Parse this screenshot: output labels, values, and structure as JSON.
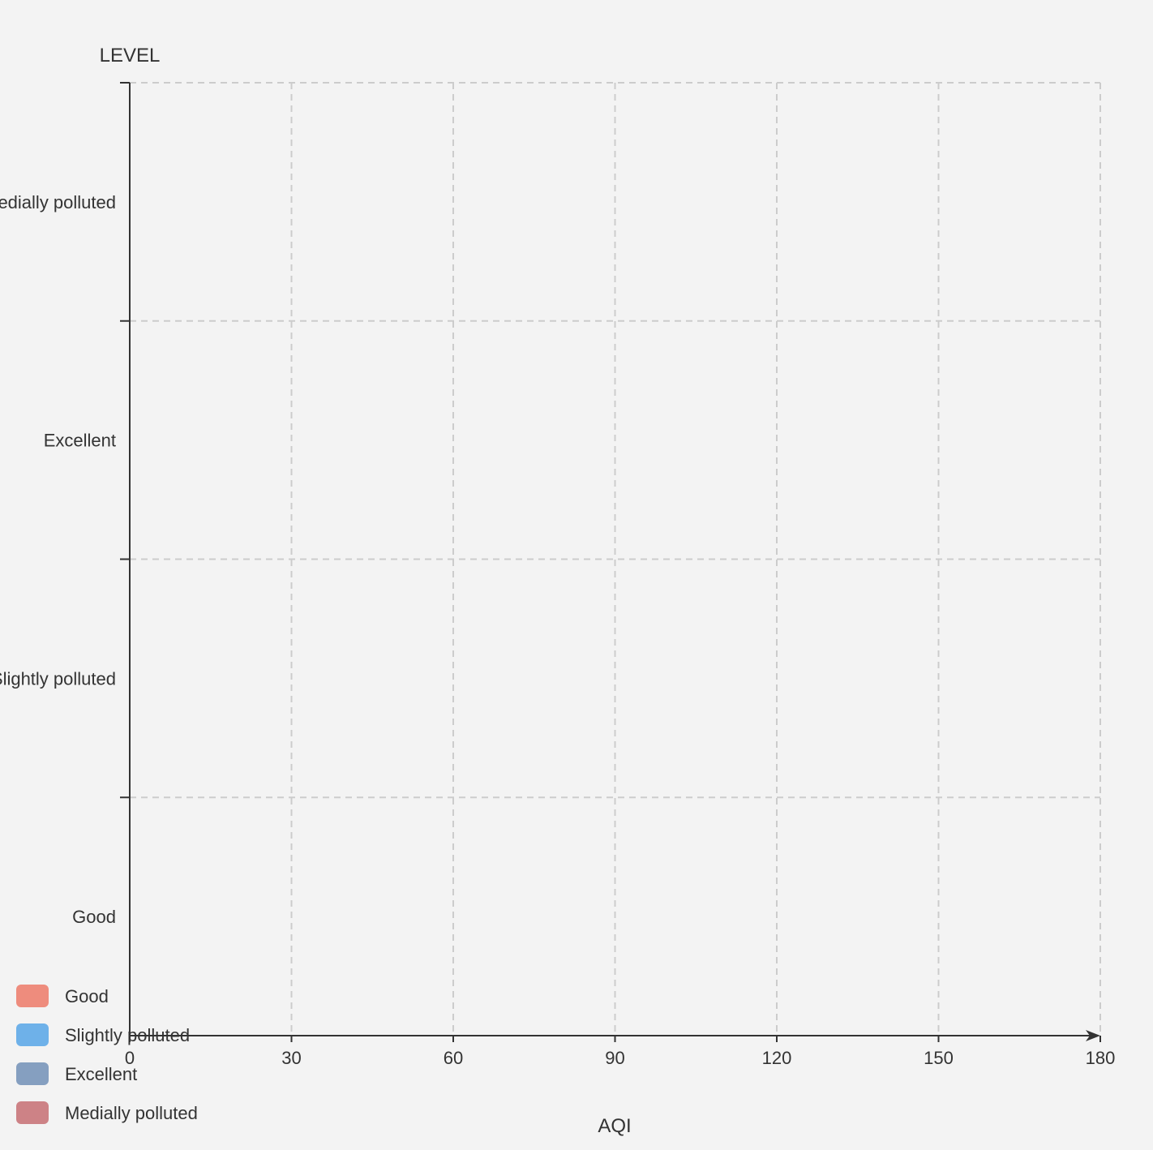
{
  "chart_data": {
    "type": "bar",
    "orientation": "horizontal",
    "y_axis_name": "LEVEL",
    "x_axis_name": "AQI",
    "categories": [
      "Good",
      "Slightly polluted",
      "Excellent",
      "Medially polluted"
    ],
    "x_ticks": [
      0,
      30,
      60,
      90,
      120,
      150,
      180
    ],
    "xlim": [
      0,
      180
    ],
    "series": [],
    "grid": true,
    "legend_position": "bottom-left",
    "legend": [
      {
        "label": "Good",
        "color": "#ee8c7d"
      },
      {
        "label": "Slightly polluted",
        "color": "#6eb1e9"
      },
      {
        "label": "Excellent",
        "color": "#859fc0"
      },
      {
        "label": "Medially polluted",
        "color": "#cd8286"
      }
    ]
  }
}
